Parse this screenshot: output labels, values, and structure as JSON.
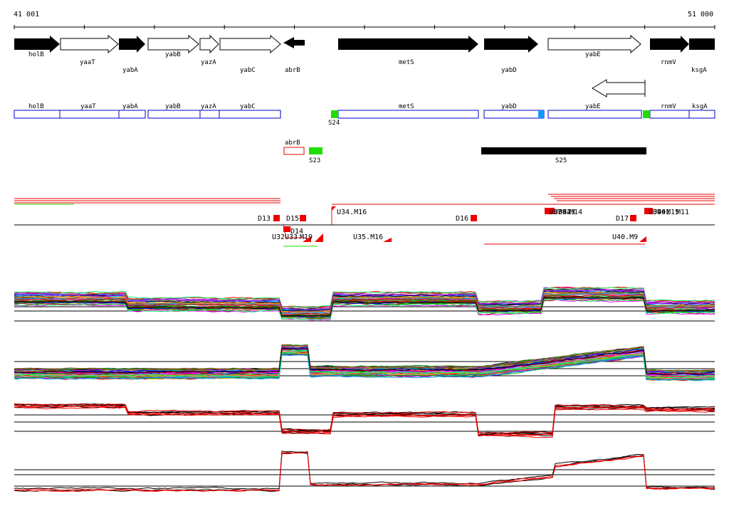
{
  "ruler": {
    "start_label": "41 001",
    "end_label": "51 000"
  },
  "colors": {
    "black": "#000000",
    "blue_outline": "#0000cc",
    "red": "#ee0000",
    "green": "#22dd00",
    "cyan": "#1199ff",
    "white": "#ffffff"
  },
  "genes_track": [
    {
      "label": "holB",
      "style": "filled"
    },
    {
      "label": "yaaT",
      "style": "open"
    },
    {
      "label": "yabA",
      "style": "filled"
    },
    {
      "label": "yabB",
      "style": "open"
    },
    {
      "label": "yazA",
      "style": "open"
    },
    {
      "label": "yabC",
      "style": "open"
    },
    {
      "label": "abrB",
      "style": "filled"
    },
    {
      "label": "metS",
      "style": "filled"
    },
    {
      "label": "yabD",
      "style": "filled"
    },
    {
      "label": "yabE",
      "style": "open"
    },
    {
      "label": "rnmV",
      "style": "filled"
    },
    {
      "label": "ksgA",
      "style": "filled"
    }
  ],
  "operon_track": {
    "boxes": [
      {
        "label": "holB"
      },
      {
        "label": "yaaT"
      },
      {
        "label": "yabA"
      },
      {
        "label": "yabB"
      },
      {
        "label": "yazA"
      },
      {
        "label": "yabC"
      },
      {
        "label": "metS"
      },
      {
        "label": "yabD"
      },
      {
        "label": "yabE"
      },
      {
        "label": "rnmV"
      },
      {
        "label": "ksgA"
      }
    ],
    "markers": [
      {
        "label": "S24",
        "color": "green"
      },
      {
        "label": "",
        "color": "cyan"
      },
      {
        "label": "",
        "color": "green"
      }
    ]
  },
  "segment_track": {
    "abrB_box": "abrB",
    "s23": "S23",
    "s25": "S25"
  },
  "features_track": {
    "upper_labels": [
      "D13",
      "D15",
      "U34.M16",
      "D16",
      "D17",
      "U37",
      "U38",
      "U39",
      "U40",
      "U41",
      "U42",
      "U43",
      "M14",
      "M11",
      "M15"
    ],
    "lower_labels": [
      "U32",
      "U33",
      "D14",
      "M19",
      "U35.M16",
      "U40.M9"
    ]
  }
}
